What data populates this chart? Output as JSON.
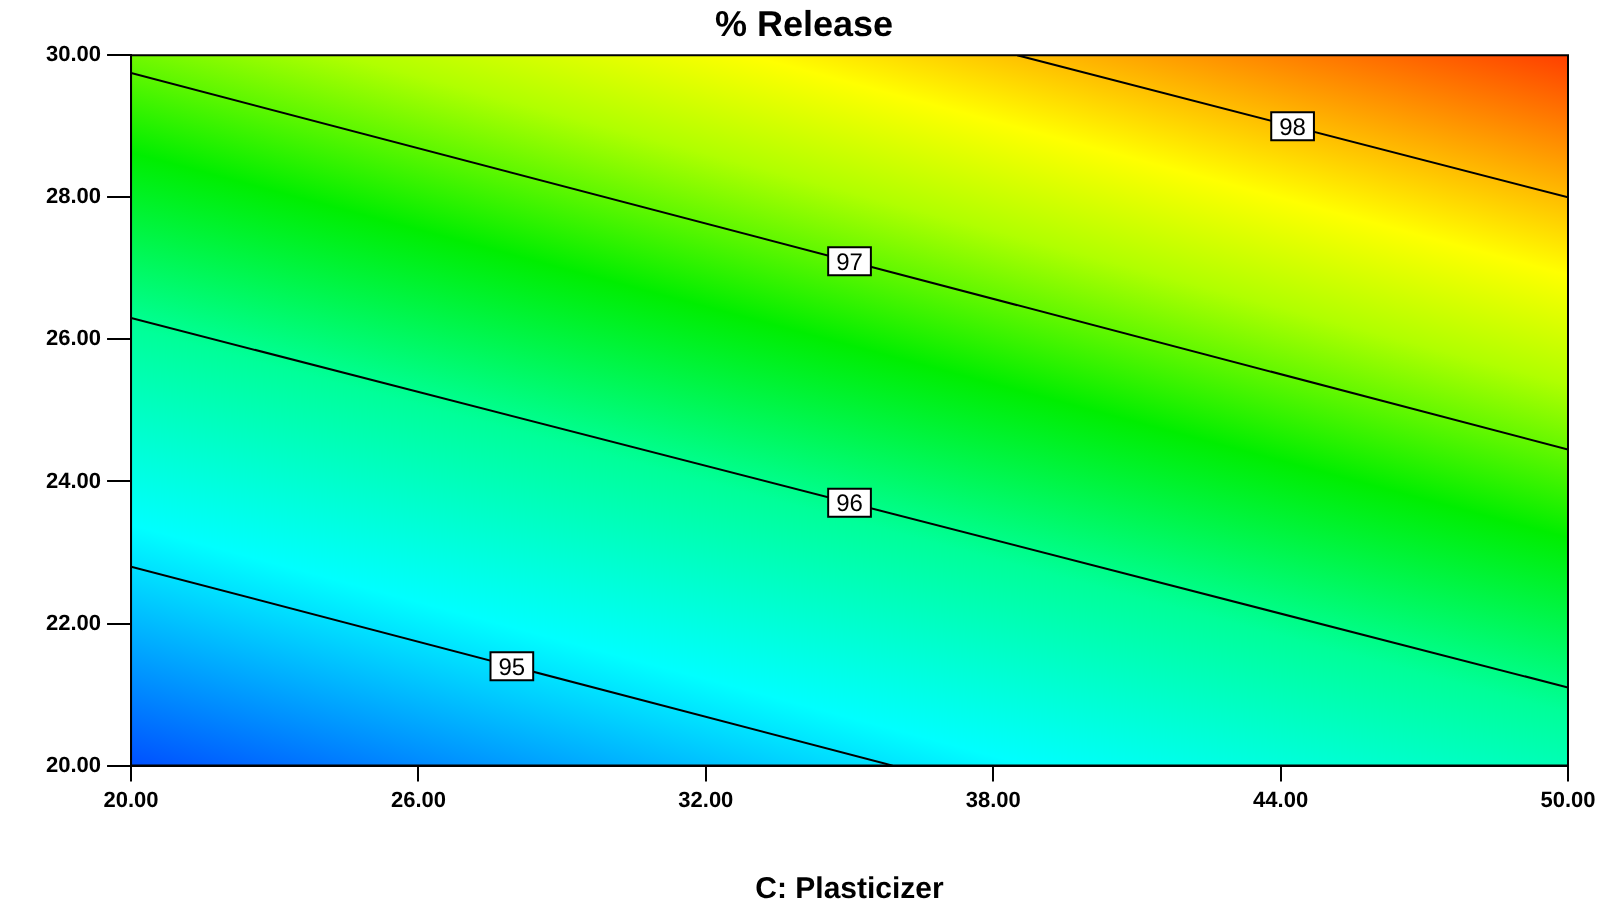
{
  "chart_data": {
    "type": "line",
    "title": "% Release",
    "xlabel": "C: Plasticizer",
    "xlim": [
      20,
      50
    ],
    "ylim": [
      20,
      30
    ],
    "xticks": [
      {
        "value": 20,
        "label": "20.00"
      },
      {
        "value": 26,
        "label": "26.00"
      },
      {
        "value": 32,
        "label": "32.00"
      },
      {
        "value": 38,
        "label": "38.00"
      },
      {
        "value": 44,
        "label": "44.00"
      },
      {
        "value": 50,
        "label": "50.00"
      }
    ],
    "yticks": [
      {
        "value": 20,
        "label": "20.00"
      },
      {
        "value": 22,
        "label": "22.00"
      },
      {
        "value": 24,
        "label": "24.00"
      },
      {
        "value": 26,
        "label": "26.00"
      },
      {
        "value": 28,
        "label": "28.00"
      },
      {
        "value": 30,
        "label": "30.00"
      }
    ],
    "grid": false,
    "legend": false,
    "marker": "none",
    "line_style": "solid",
    "series": [
      {
        "name": "95",
        "color": "#000000",
        "x": [
          20,
          35.9
        ],
        "values": [
          22.8,
          20
        ]
      },
      {
        "name": "96",
        "color": "#000000",
        "x": [
          20,
          50
        ],
        "values": [
          26.3,
          21.1
        ]
      },
      {
        "name": "97",
        "color": "#000000",
        "x": [
          20,
          50
        ],
        "values": [
          29.75,
          24.45
        ]
      },
      {
        "name": "98",
        "color": "#000000",
        "x": [
          38.5,
          50
        ],
        "values": [
          30,
          28
        ]
      }
    ]
  }
}
